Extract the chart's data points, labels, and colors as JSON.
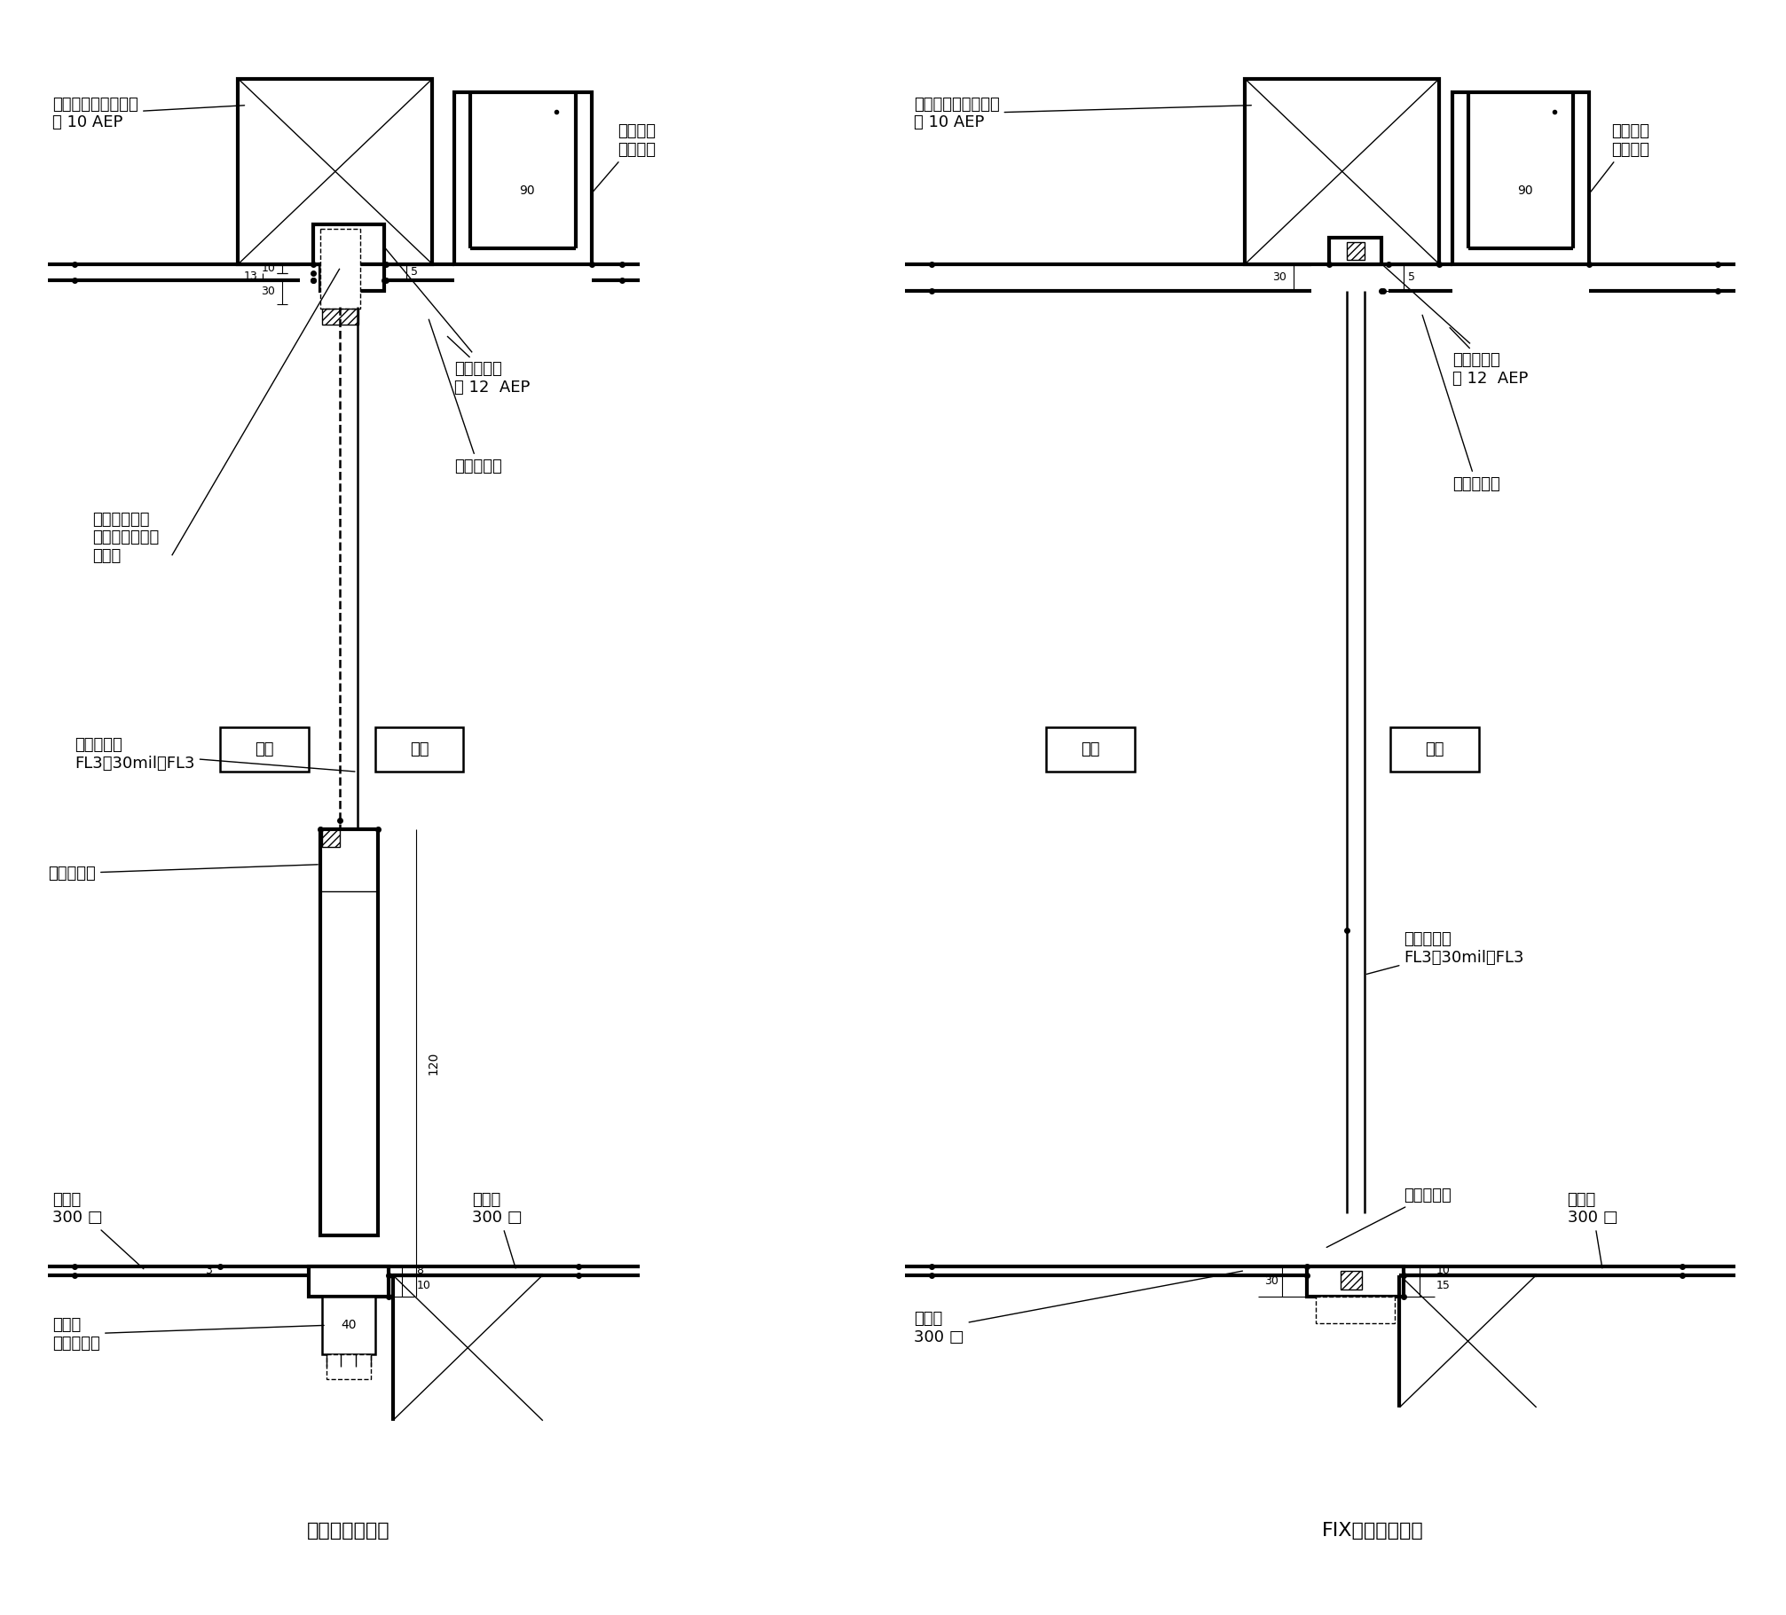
{
  "bg": "#ffffff",
  "fig_w": 20.13,
  "fig_h": 18.21,
  "left_title": "ドア断面詳細図",
  "right_title": "FIX部断面詳細図",
  "lbl_keisan": "ケイ酸カルシウム板",
  "lbl_keisan2": "ⓐ 10 AEP",
  "lbl_curtain": "カーテン\nボックス",
  "lbl_gypsum": "石膏ボード",
  "lbl_gypsum2": "ⓐ 12  AEP",
  "lbl_alumi": "アルミ形材",
  "lbl_concealed": "コンシールド\nドアクローザー\n埋込み",
  "lbl_glass": "防範ガラス\nFL3＋30mil＋FL3",
  "lbl_tile": "タイル\n300 □",
  "lbl_saya": "鄓捯：\nステンレス",
  "lbl_outer": "外部",
  "lbl_inner": "内部",
  "d90": "90",
  "d5": "5",
  "d10": "10",
  "d13": "13",
  "d30": "30",
  "d3": "3",
  "d8": "8",
  "d10b": "10",
  "d120": "120",
  "d40": "40",
  "d15": "15"
}
